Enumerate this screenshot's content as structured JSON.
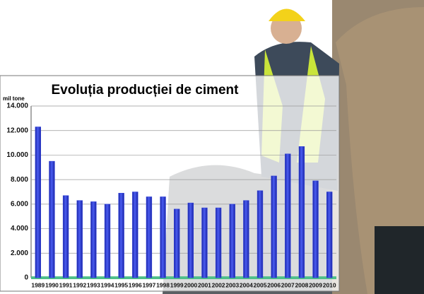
{
  "chart_data": {
    "type": "bar",
    "title": "Evoluția producției de ciment",
    "y_unit": "mil tone",
    "categories": [
      "1989",
      "1990",
      "1991",
      "1992",
      "1993",
      "1994",
      "1995",
      "1996",
      "1997",
      "1998",
      "1999",
      "2000",
      "2001",
      "2002",
      "2003",
      "2004",
      "2005",
      "2006",
      "2007",
      "2008",
      "2009",
      "2010"
    ],
    "values": [
      12300,
      9500,
      6700,
      6300,
      6200,
      6000,
      6900,
      7000,
      6600,
      6600,
      5600,
      6100,
      5700,
      5700,
      6000,
      6300,
      7100,
      8300,
      10100,
      10700,
      7900,
      7000
    ],
    "color": "#3344dd",
    "ylim": [
      0,
      14000
    ],
    "yticks": [
      0,
      {
        "value": 2000,
        "label": "2.000"
      },
      {
        "value": 4000,
        "label": "4.000"
      },
      {
        "value": 6000,
        "label": "6.000"
      },
      {
        "value": 8000,
        "label": "8.000"
      },
      {
        "value": 10000,
        "label": "10.000"
      },
      {
        "value": 12000,
        "label": "12.000"
      },
      {
        "value": 14000,
        "label": "14.000"
      }
    ],
    "grid": true
  }
}
